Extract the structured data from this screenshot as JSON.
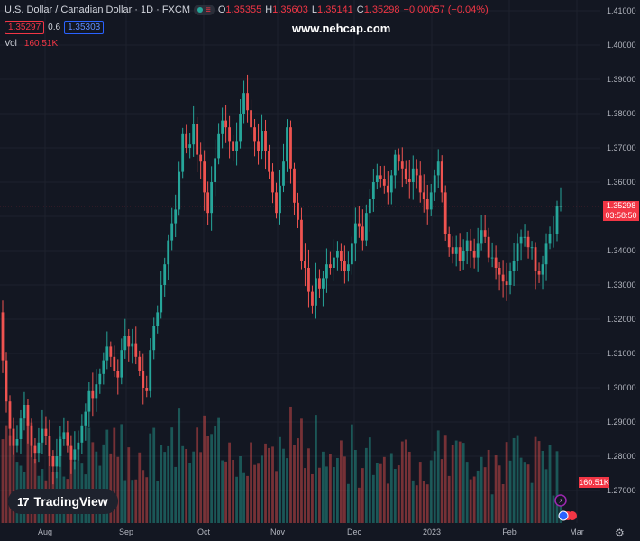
{
  "header": {
    "symbol": "U.S. Dollar / Canadian Dollar · 1D · FXCM",
    "open_label": "O",
    "open": "1.35355",
    "high_label": "H",
    "high": "1.35603",
    "low_label": "L",
    "low": "1.35141",
    "close_label": "C",
    "close": "1.35298",
    "change": "−0.00057 (−0.04%)"
  },
  "trade": {
    "sell": "1.35297",
    "spread": "0.6",
    "buy": "1.35303"
  },
  "volume": {
    "label": "Vol",
    "value": "160.51K"
  },
  "watermark": "www.nehcap.com",
  "logo": {
    "mark": "17",
    "text": "TradingView"
  },
  "price_label": {
    "price": "1.35298",
    "countdown": "03:58:50"
  },
  "volume_label": "160.51K",
  "colors": {
    "up": "#26a69a",
    "down": "#ef5350",
    "background": "#131722",
    "grid": "#1e222d"
  },
  "chart_data": {
    "type": "candlestick",
    "title": "U.S. Dollar / Canadian Dollar · 1D · FXCM",
    "y_ticks": [
      "1.41000",
      "1.40000",
      "1.39000",
      "1.38000",
      "1.37000",
      "1.36000",
      "1.35000",
      "1.34000",
      "1.33000",
      "1.32000",
      "1.31000",
      "1.30000",
      "1.29000",
      "1.28000",
      "1.27000"
    ],
    "x_ticks": [
      "Aug",
      "Sep",
      "Oct",
      "Nov",
      "Dec",
      "2023",
      "Feb",
      "Mar"
    ],
    "ylim": [
      1.2655,
      1.4113
    ],
    "current_price": 1.35298,
    "closes": [
      1.308,
      1.296,
      1.288,
      1.283,
      1.285,
      1.291,
      1.295,
      1.289,
      1.283,
      1.281,
      1.284,
      1.288,
      1.286,
      1.28,
      1.277,
      1.28,
      1.285,
      1.287,
      1.283,
      1.279,
      1.282,
      1.284,
      1.289,
      1.293,
      1.299,
      1.297,
      1.301,
      1.304,
      1.308,
      1.312,
      1.309,
      1.305,
      1.303,
      1.311,
      1.315,
      1.312,
      1.313,
      1.309,
      1.305,
      1.3,
      1.299,
      1.311,
      1.318,
      1.322,
      1.33,
      1.336,
      1.343,
      1.348,
      1.352,
      1.363,
      1.374,
      1.37,
      1.371,
      1.377,
      1.368,
      1.366,
      1.357,
      1.351,
      1.36,
      1.367,
      1.374,
      1.378,
      1.376,
      1.372,
      1.369,
      1.372,
      1.38,
      1.386,
      1.381,
      1.376,
      1.372,
      1.369,
      1.375,
      1.369,
      1.363,
      1.357,
      1.351,
      1.359,
      1.366,
      1.376,
      1.364,
      1.354,
      1.349,
      1.337,
      1.335,
      1.328,
      1.324,
      1.332,
      1.329,
      1.332,
      1.336,
      1.335,
      1.338,
      1.34,
      1.337,
      1.334,
      1.336,
      1.342,
      1.348,
      1.347,
      1.343,
      1.351,
      1.355,
      1.36,
      1.362,
      1.361,
      1.359,
      1.357,
      1.362,
      1.368,
      1.366,
      1.364,
      1.361,
      1.36,
      1.364,
      1.362,
      1.357,
      1.355,
      1.352,
      1.357,
      1.362,
      1.366,
      1.357,
      1.345,
      1.341,
      1.339,
      1.341,
      1.337,
      1.34,
      1.343,
      1.34,
      1.338,
      1.342,
      1.346,
      1.344,
      1.338,
      1.338,
      1.335,
      1.333,
      1.331,
      1.33,
      1.334,
      1.337,
      1.342,
      1.344,
      1.344,
      1.341,
      1.341,
      1.334,
      1.333,
      1.336,
      1.342,
      1.345,
      1.345,
      1.353,
      1.353
    ]
  }
}
